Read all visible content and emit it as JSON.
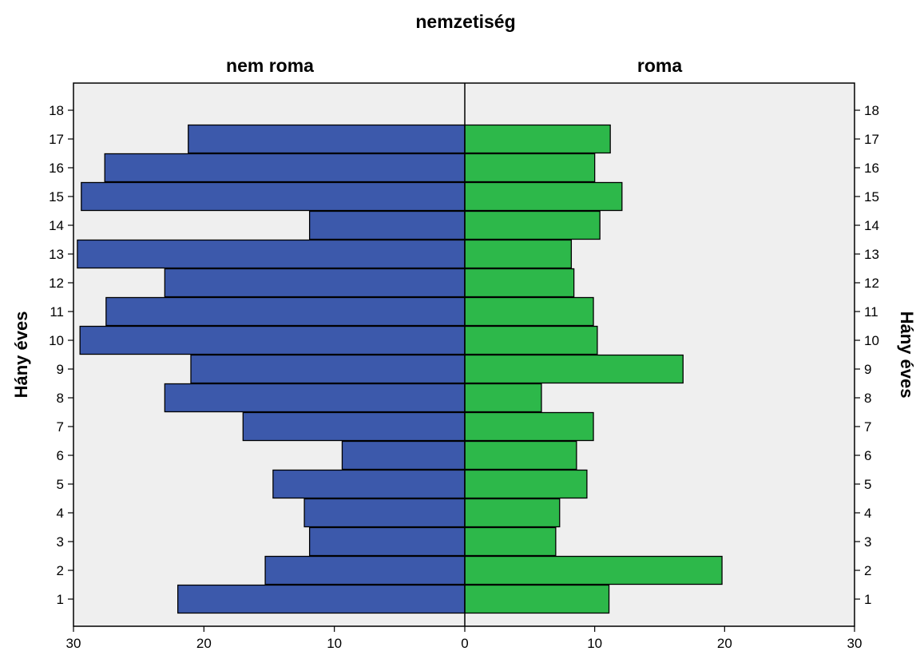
{
  "chart_data": {
    "type": "bar",
    "title": "nemzetiség",
    "ylabel": "Hány éves",
    "categories": [
      "1",
      "2",
      "3",
      "4",
      "5",
      "6",
      "7",
      "8",
      "9",
      "10",
      "11",
      "12",
      "13",
      "14",
      "15",
      "16",
      "17",
      "18"
    ],
    "series": [
      {
        "name": "nem roma",
        "values": [
          22,
          15.3,
          11.9,
          12.3,
          14.7,
          9.4,
          17,
          23,
          21,
          29.5,
          27.5,
          23,
          29.7,
          11.9,
          29.4,
          27.6,
          21.2,
          0
        ],
        "color": "#3c59ab"
      },
      {
        "name": "roma",
        "values": [
          11.1,
          19.8,
          7,
          7.3,
          9.4,
          8.6,
          9.9,
          5.9,
          16.8,
          10.2,
          9.9,
          8.4,
          8.2,
          10.4,
          12.1,
          10,
          11.2,
          0
        ],
        "color": "#2db84a"
      }
    ],
    "xlim": [
      0,
      30
    ],
    "x_ticks": [
      30,
      20,
      10,
      0,
      10,
      20,
      30
    ],
    "grid": false,
    "legend": "none",
    "background": "#efefef",
    "bar_outline": "#000000"
  }
}
